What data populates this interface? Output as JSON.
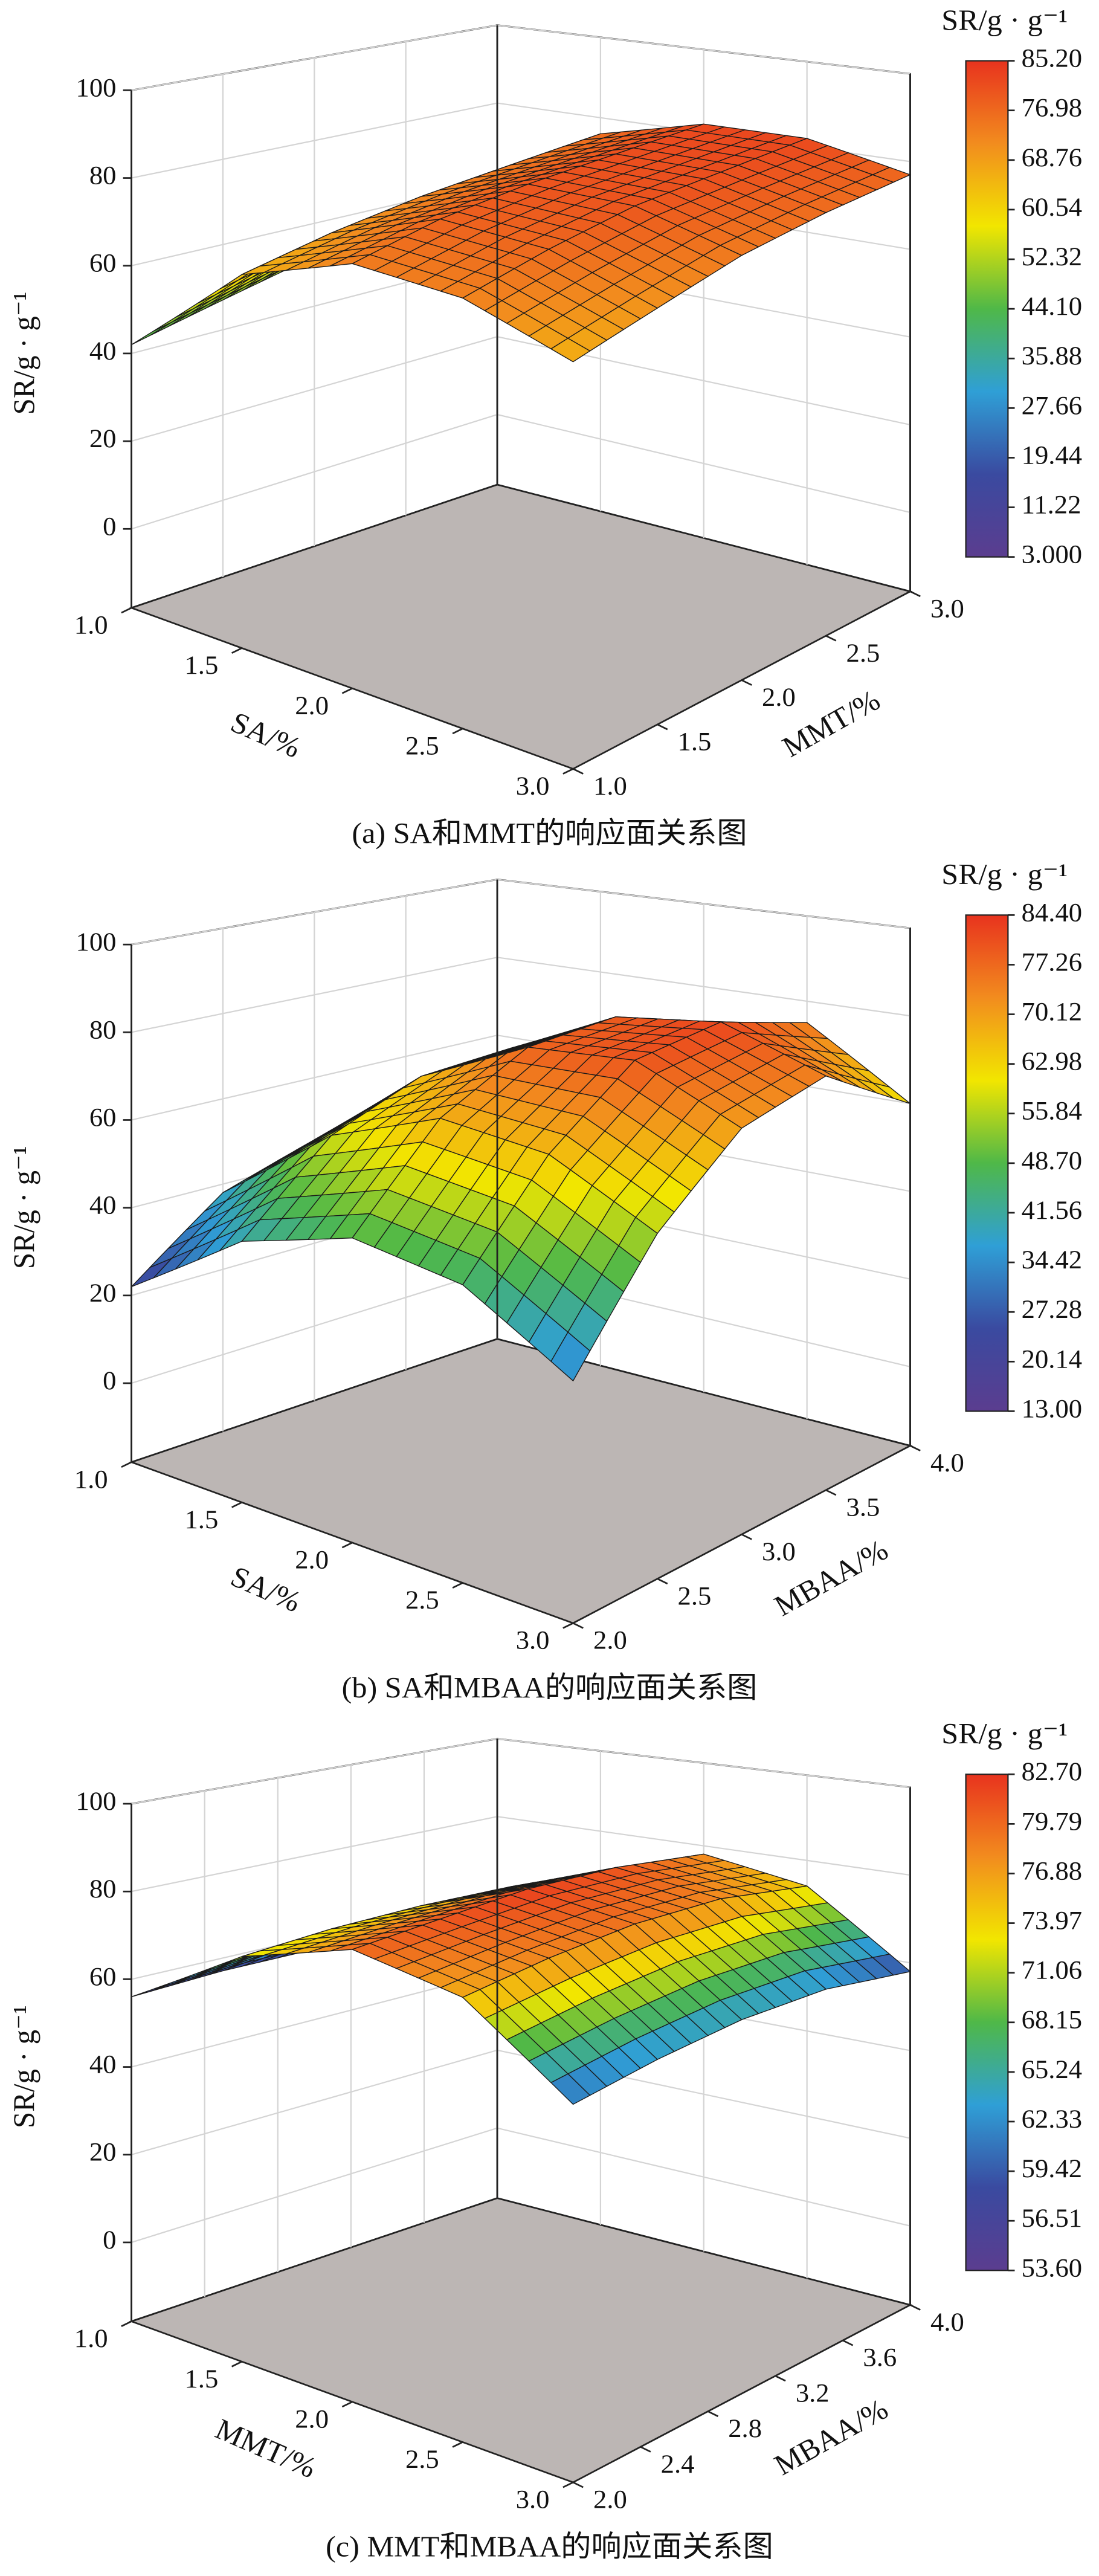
{
  "chart_data": [
    {
      "type": "surface",
      "caption": "(a) SA和MMT的响应面关系图",
      "x_label": "SA/%",
      "y_label": "MMT/%",
      "z_label": "SR/g · g⁻¹",
      "colorbar_title": "SR/g · g⁻¹",
      "x": [
        1,
        1.5,
        2,
        2.5,
        3
      ],
      "y": [
        1,
        1.5,
        2,
        2.5,
        3
      ],
      "z": [
        [
          42,
          47,
          52,
          57,
          62
        ],
        [
          65,
          69,
          72,
          74,
          76
        ],
        [
          74,
          78,
          80,
          81,
          82
        ],
        [
          73,
          77,
          80,
          81,
          82
        ],
        [
          66,
          70,
          74,
          76,
          77
        ]
      ],
      "xlim": [
        1,
        3
      ],
      "ylim": [
        1,
        3
      ],
      "zlim": [
        -18,
        100
      ],
      "xticks": [
        {
          "value": 1,
          "label": "1.0"
        },
        1.5,
        {
          "value": 2,
          "label": "2.0"
        },
        2.5,
        {
          "value": 3,
          "label": "3.0"
        }
      ],
      "yticks": [
        {
          "value": 1,
          "label": "1.0"
        },
        1.5,
        {
          "value": 2,
          "label": "2.0"
        },
        2.5,
        {
          "value": 3,
          "label": "3.0"
        }
      ],
      "zticks": [
        0,
        20,
        40,
        60,
        80,
        100
      ],
      "colorbar": {
        "lim": [
          3,
          85.2
        ],
        "ticks": [
          {
            "value": 85.2,
            "label": "85.20"
          },
          76.98,
          68.76,
          60.54,
          52.32,
          {
            "value": 44.1,
            "label": "44.10"
          },
          35.88,
          27.66,
          19.44,
          11.22,
          {
            "value": 3,
            "label": "3.000"
          }
        ]
      },
      "colormap": [
        "#5b3d8f",
        "#3a4aa0",
        "#2f9fd6",
        "#4fb848",
        "#f2e600",
        "#f28c1e",
        "#e8331e"
      ]
    },
    {
      "type": "surface",
      "caption": "(b) SA和MBAA的响应面关系图",
      "x_label": "SA/%",
      "y_label": "MBAA/%",
      "z_label": "SR/g · g⁻¹",
      "colorbar_title": "SR/g · g⁻¹",
      "x": [
        1,
        1.5,
        2,
        2.5,
        3
      ],
      "y": [
        2,
        2.5,
        3,
        3.5,
        4
      ],
      "z": [
        [
          22,
          38,
          45,
          46,
          40
        ],
        [
          40,
          58,
          66,
          67,
          60
        ],
        [
          48,
          68,
          78,
          79,
          70
        ],
        [
          45,
          66,
          80,
          82,
          75
        ],
        [
          32,
          55,
          70,
          74,
          60
        ]
      ],
      "xlim": [
        1,
        3
      ],
      "ylim": [
        2,
        4
      ],
      "zlim": [
        -18,
        100
      ],
      "xticks": [
        {
          "value": 1,
          "label": "1.0"
        },
        1.5,
        {
          "value": 2,
          "label": "2.0"
        },
        2.5,
        {
          "value": 3,
          "label": "3.0"
        }
      ],
      "yticks": [
        {
          "value": 2,
          "label": "2.0"
        },
        2.5,
        {
          "value": 3,
          "label": "3.0"
        },
        3.5,
        {
          "value": 4,
          "label": "4.0"
        }
      ],
      "zticks": [
        0,
        20,
        40,
        60,
        80,
        100
      ],
      "colorbar": {
        "lim": [
          13,
          84.4
        ],
        "ticks": [
          {
            "value": 84.4,
            "label": "84.40"
          },
          77.26,
          70.12,
          62.98,
          55.84,
          {
            "value": 48.7,
            "label": "48.70"
          },
          41.56,
          34.42,
          27.28,
          20.14,
          {
            "value": 13,
            "label": "13.00"
          }
        ]
      },
      "colormap": [
        "#5b3d8f",
        "#3a4aa0",
        "#2f9fd6",
        "#4fb848",
        "#f2e600",
        "#f28c1e",
        "#e8331e"
      ]
    },
    {
      "type": "surface",
      "caption": "(c) MMT和MBAA的响应面关系图",
      "x_label": "MMT/%",
      "y_label": "MBAA/%",
      "z_label": "SR/g · g⁻¹",
      "colorbar_title": "SR/g · g⁻¹",
      "x": [
        1,
        1.5,
        2,
        2.5,
        3
      ],
      "y": [
        2,
        2.5,
        3,
        3.5,
        4
      ],
      "z": [
        [
          56,
          57,
          57,
          56,
          55
        ],
        [
          72,
          73,
          73,
          72,
          70
        ],
        [
          80,
          81,
          82,
          81,
          78
        ],
        [
          76,
          78,
          79,
          78,
          74
        ],
        [
          60,
          62,
          63,
          62,
          58
        ]
      ],
      "xlim": [
        1,
        3
      ],
      "ylim": [
        2,
        4
      ],
      "zlim": [
        -18,
        100
      ],
      "xticks": [
        {
          "value": 1,
          "label": "1.0"
        },
        1.5,
        {
          "value": 2,
          "label": "2.0"
        },
        2.5,
        {
          "value": 3,
          "label": "3.0"
        }
      ],
      "yticks": [
        {
          "value": 2,
          "label": "2.0"
        },
        2.4,
        2.8,
        3.2,
        3.6,
        {
          "value": 4,
          "label": "4.0"
        }
      ],
      "zticks": [
        0,
        20,
        40,
        60,
        80,
        100
      ],
      "colorbar": {
        "lim": [
          53.6,
          82.7
        ],
        "ticks": [
          {
            "value": 82.7,
            "label": "82.70"
          },
          79.79,
          76.88,
          73.97,
          71.06,
          68.15,
          65.24,
          62.33,
          59.42,
          56.51,
          {
            "value": 53.6,
            "label": "53.60"
          }
        ]
      },
      "colormap": [
        "#5b3d8f",
        "#3a4aa0",
        "#2f9fd6",
        "#4fb848",
        "#f2e600",
        "#f28c1e",
        "#e8331e"
      ]
    }
  ]
}
